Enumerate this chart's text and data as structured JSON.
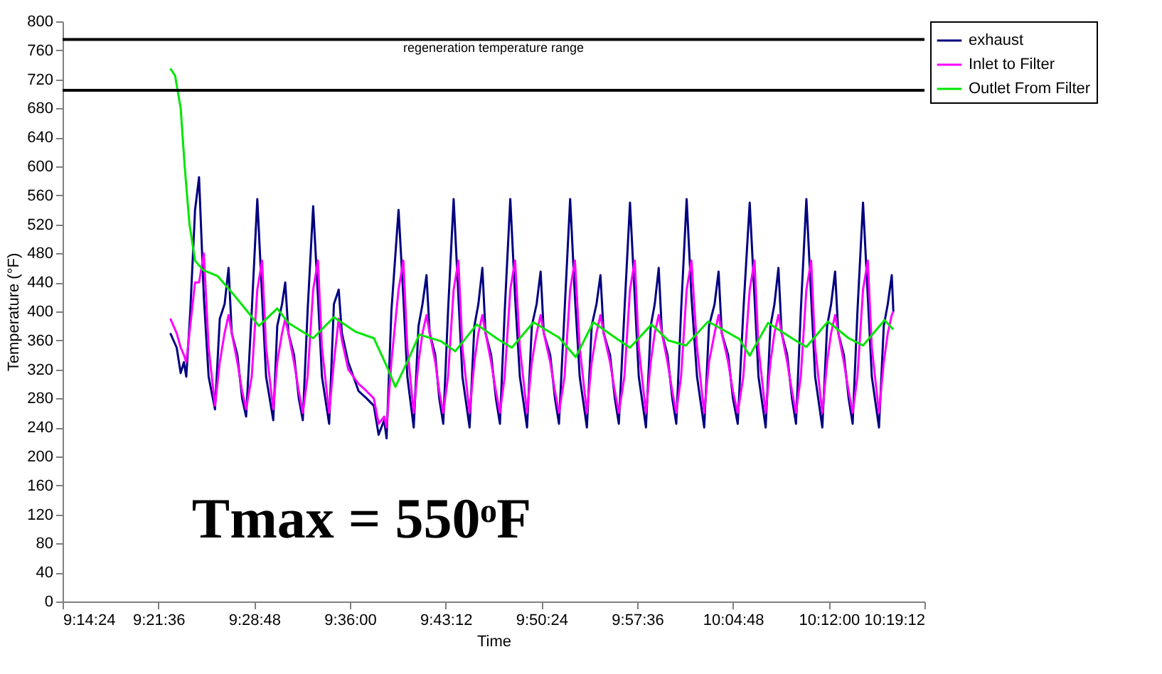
{
  "chart_data": {
    "type": "line",
    "xlabel": "Time",
    "ylabel": "Temperature (°F)",
    "xlim": [
      9.24,
      10.32
    ],
    "ylim": [
      0,
      800
    ],
    "xticks": [
      {
        "value": 9.24,
        "label": "9:14:24"
      },
      {
        "value": 9.36,
        "label": "9:21:36"
      },
      {
        "value": 9.48,
        "label": "9:28:48"
      },
      {
        "value": 9.6,
        "label": "9:36:00"
      },
      {
        "value": 9.72,
        "label": "9:43:12"
      },
      {
        "value": 9.84,
        "label": "9:50:24"
      },
      {
        "value": 9.96,
        "label": "9:57:36"
      },
      {
        "value": 10.08,
        "label": "10:04:48"
      },
      {
        "value": 10.2,
        "label": "10:12:00"
      },
      {
        "value": 10.32,
        "label": "10:19:12"
      }
    ],
    "yticks": [
      0,
      40,
      80,
      120,
      160,
      200,
      240,
      280,
      320,
      360,
      400,
      440,
      480,
      520,
      560,
      600,
      640,
      680,
      720,
      760,
      800
    ],
    "grid": false,
    "legend": "right",
    "marker": "none",
    "line_style": "solid",
    "x": [
      9.375,
      9.383,
      9.388,
      9.392,
      9.395,
      9.4,
      9.406,
      9.411,
      9.417,
      9.423,
      9.431,
      9.437,
      9.443,
      9.448,
      9.452,
      9.459,
      9.465,
      9.47,
      9.477,
      9.484,
      9.49,
      9.495,
      9.504,
      9.509,
      9.515,
      9.519,
      9.523,
      9.53,
      9.536,
      9.541,
      9.547,
      9.554,
      9.56,
      9.565,
      9.574,
      9.58,
      9.586,
      9.59,
      9.598,
      9.611,
      9.621,
      9.63,
      9.636,
      9.643,
      9.646,
      9.652,
      9.661,
      9.667,
      9.672,
      9.68,
      9.686,
      9.691,
      9.696,
      9.7,
      9.707,
      9.712,
      9.717,
      9.723,
      9.73,
      9.736,
      9.741,
      9.75,
      9.756,
      9.761,
      9.766,
      9.77,
      9.777,
      9.783,
      9.788,
      9.794,
      9.801,
      9.807,
      9.813,
      9.822,
      9.828,
      9.834,
      9.839,
      9.843,
      9.851,
      9.857,
      9.862,
      9.869,
      9.876,
      9.882,
      9.888,
      9.897,
      9.903,
      9.909,
      9.914,
      9.918,
      9.926,
      9.932,
      9.937,
      9.944,
      9.951,
      9.957,
      9.962,
      9.971,
      9.977,
      9.982,
      9.987,
      9.991,
      9.998,
      10.004,
      10.009,
      10.015,
      10.022,
      10.028,
      10.035,
      10.044,
      10.05,
      10.057,
      10.062,
      10.066,
      10.074,
      10.08,
      10.086,
      10.093,
      10.101,
      10.107,
      10.112,
      10.121,
      10.127,
      10.132,
      10.137,
      10.141,
      10.148,
      10.154,
      10.159,
      10.165,
      10.172,
      10.178,
      10.183,
      10.192,
      10.198,
      10.203,
      10.208,
      10.212,
      10.219,
      10.225,
      10.23,
      10.236,
      10.243,
      10.249,
      10.254,
      10.263,
      10.269,
      10.274,
      10.279,
      10.281
    ],
    "series": [
      {
        "name": "exhaust",
        "color": "#000080",
        "values": [
          370,
          350,
          315,
          330,
          310,
          400,
          540,
          585,
          420,
          310,
          265,
          390,
          410,
          460,
          370,
          340,
          280,
          255,
          400,
          555,
          420,
          310,
          250,
          380,
          410,
          440,
          370,
          340,
          280,
          250,
          400,
          545,
          420,
          310,
          245,
          410,
          430,
          370,
          330,
          290,
          280,
          270,
          230,
          250,
          225,
          400,
          540,
          420,
          310,
          240,
          380,
          410,
          450,
          370,
          340,
          280,
          245,
          400,
          555,
          420,
          310,
          240,
          380,
          410,
          460,
          370,
          340,
          280,
          245,
          400,
          555,
          420,
          310,
          240,
          380,
          410,
          455,
          370,
          340,
          280,
          245,
          400,
          555,
          420,
          310,
          240,
          380,
          410,
          450,
          370,
          340,
          280,
          245,
          400,
          550,
          420,
          310,
          240,
          380,
          410,
          460,
          370,
          340,
          280,
          245,
          400,
          555,
          420,
          310,
          240,
          380,
          410,
          455,
          370,
          340,
          280,
          245,
          400,
          550,
          420,
          310,
          240,
          380,
          410,
          460,
          370,
          340,
          280,
          245,
          400,
          555,
          420,
          310,
          240,
          380,
          410,
          455,
          370,
          340,
          280,
          245,
          400,
          550,
          420,
          310,
          240,
          380,
          410,
          450,
          400
        ]
      },
      {
        "name": "Inlet to Filter",
        "color": "#ff00ff",
        "values": [
          390,
          370,
          350,
          340,
          330,
          380,
          440,
          440,
          480,
          350,
          270,
          330,
          370,
          395,
          370,
          330,
          290,
          265,
          310,
          430,
          470,
          350,
          265,
          330,
          370,
          390,
          370,
          330,
          290,
          260,
          310,
          430,
          470,
          350,
          260,
          330,
          390,
          360,
          320,
          300,
          290,
          280,
          245,
          255,
          240,
          330,
          430,
          470,
          350,
          260,
          330,
          370,
          395,
          370,
          330,
          290,
          260,
          310,
          430,
          470,
          350,
          260,
          330,
          370,
          395,
          370,
          330,
          290,
          260,
          310,
          430,
          470,
          350,
          260,
          330,
          370,
          395,
          370,
          330,
          290,
          260,
          310,
          430,
          470,
          350,
          260,
          330,
          370,
          395,
          370,
          330,
          290,
          260,
          310,
          430,
          470,
          350,
          260,
          330,
          370,
          395,
          370,
          330,
          290,
          260,
          310,
          430,
          470,
          350,
          260,
          330,
          370,
          395,
          370,
          330,
          290,
          260,
          310,
          430,
          470,
          350,
          260,
          330,
          370,
          395,
          370,
          330,
          290,
          260,
          310,
          430,
          470,
          350,
          260,
          330,
          370,
          395,
          370,
          330,
          290,
          260,
          310,
          430,
          470,
          350,
          260,
          330,
          370,
          395,
          400
        ]
      },
      {
        "name": "Outlet From Filter",
        "color": "#00e600",
        "x": [
          9.375,
          9.381,
          9.388,
          9.393,
          9.399,
          9.406,
          9.416,
          9.434,
          9.456,
          9.473,
          9.486,
          9.509,
          9.523,
          9.554,
          9.58,
          9.607,
          9.63,
          9.648,
          9.657,
          9.673,
          9.687,
          9.714,
          9.732,
          9.759,
          9.785,
          9.803,
          9.83,
          9.862,
          9.883,
          9.905,
          9.931,
          9.951,
          9.978,
          9.999,
          10.021,
          10.049,
          10.088,
          10.101,
          10.124,
          10.154,
          10.172,
          10.199,
          10.225,
          10.243,
          10.27,
          10.281
        ],
        "values": [
          735,
          725,
          680,
          600,
          520,
          470,
          457,
          449,
          421,
          398,
          380,
          404,
          384,
          363,
          392,
          372,
          363,
          320,
          296,
          333,
          368,
          359,
          345,
          382,
          362,
          350,
          385,
          364,
          337,
          385,
          365,
          350,
          382,
          360,
          353,
          386,
          362,
          339,
          384,
          363,
          351,
          386,
          363,
          353,
          388,
          375
        ]
      }
    ],
    "ref_lines": [
      {
        "axis": "y",
        "value": 775,
        "color": "#000000"
      },
      {
        "axis": "y",
        "value": 705,
        "color": "#000000"
      }
    ],
    "annotations": [
      "regeneration  temperature range",
      "Tmax = 550ᵒF"
    ]
  }
}
